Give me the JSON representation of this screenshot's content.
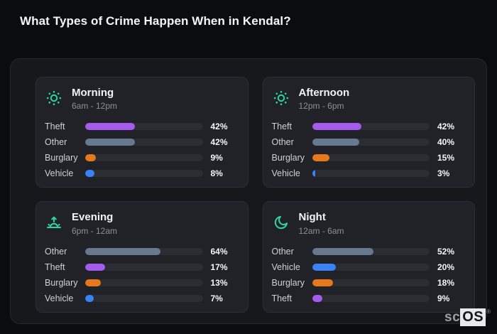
{
  "page_title": "What Types of Crime Happen When in Kendal?",
  "logo": {
    "prefix": "sc",
    "suffix": "OS",
    "mark": "®"
  },
  "colors": {
    "background": "#0b0c0e",
    "board": "#17181c",
    "panel": "#212227",
    "bar_track": "#2b2d32",
    "accent_teal": "#2fd6a5",
    "category_colors": {
      "Theft": "#a55cec",
      "Other": "#68798f",
      "Burglary": "#e6791a",
      "Vehicle": "#3b82f6"
    }
  },
  "chart_data": [
    {
      "type": "bar",
      "title": "Morning",
      "subtitle": "6am - 12pm",
      "icon": "sun-icon",
      "unit": "%",
      "xlim": [
        0,
        100
      ],
      "categories": [
        "Theft",
        "Other",
        "Burglary",
        "Vehicle"
      ],
      "values": [
        42,
        42,
        9,
        8
      ]
    },
    {
      "type": "bar",
      "title": "Afternoon",
      "subtitle": "12pm - 6pm",
      "icon": "sun-icon",
      "unit": "%",
      "xlim": [
        0,
        100
      ],
      "categories": [
        "Theft",
        "Other",
        "Burglary",
        "Vehicle"
      ],
      "values": [
        42,
        40,
        15,
        3
      ]
    },
    {
      "type": "bar",
      "title": "Evening",
      "subtitle": "6pm - 12am",
      "icon": "sunrise-icon",
      "unit": "%",
      "xlim": [
        0,
        100
      ],
      "categories": [
        "Other",
        "Theft",
        "Burglary",
        "Vehicle"
      ],
      "values": [
        64,
        17,
        13,
        7
      ]
    },
    {
      "type": "bar",
      "title": "Night",
      "subtitle": "12am - 6am",
      "icon": "moon-icon",
      "unit": "%",
      "xlim": [
        0,
        100
      ],
      "categories": [
        "Other",
        "Vehicle",
        "Burglary",
        "Theft"
      ],
      "values": [
        52,
        20,
        18,
        9
      ]
    }
  ]
}
